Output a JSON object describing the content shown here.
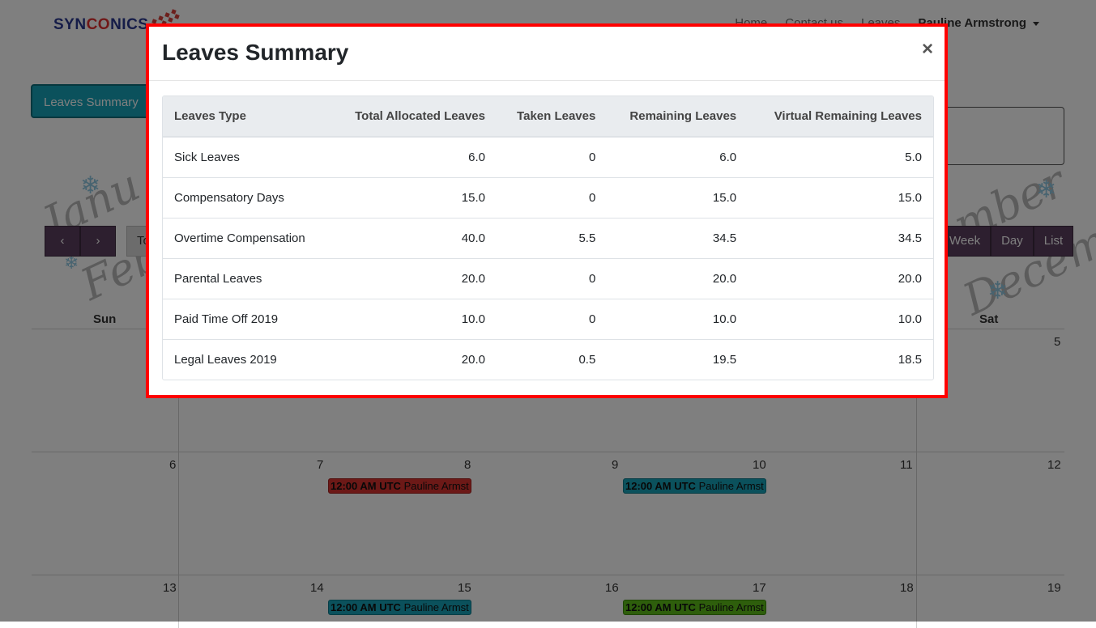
{
  "brand": {
    "logo_left": "SYN",
    "logo_mid": "CO",
    "logo_right": "NICS"
  },
  "nav": {
    "home": "Home",
    "contact": "Contact us",
    "leaves": "Leaves",
    "user": "Pauline Armstrong"
  },
  "toolbar": {
    "summary_label": "Leaves Summary"
  },
  "calendar": {
    "today_label": "Today",
    "views": [
      "Week",
      "Day",
      "List"
    ],
    "weekdays": {
      "sun": "Sun",
      "sat": "Sat"
    },
    "days_row1": {
      "sat": "5"
    },
    "days_row2": [
      "6",
      "7",
      "8",
      "9",
      "10",
      "11",
      "12"
    ],
    "days_row3": [
      "13",
      "14",
      "15",
      "16",
      "17",
      "18",
      "19"
    ],
    "events": [
      {
        "time": "12:00 AM UTC",
        "title": "Pauline Armst",
        "color": "#d9322e"
      },
      {
        "time": "12:00 AM UTC",
        "title": "Pauline Armst",
        "color": "#17a2b8"
      },
      {
        "time": "12:00 AM UTC",
        "title": "Pauline Armst",
        "color": "#17a2b8"
      },
      {
        "time": "12:00 AM UTC",
        "title": "Pauline Armst",
        "color": "#5cbd18"
      }
    ]
  },
  "modal": {
    "title": "Leaves Summary",
    "close": "×",
    "columns": [
      "Leaves Type",
      "Total Allocated Leaves",
      "Taken Leaves",
      "Remaining Leaves",
      "Virtual Remaining Leaves"
    ],
    "rows": [
      [
        "Sick Leaves",
        "6.0",
        "0",
        "6.0",
        "5.0"
      ],
      [
        "Compensatory Days",
        "15.0",
        "0",
        "15.0",
        "15.0"
      ],
      [
        "Overtime Compensation",
        "40.0",
        "5.5",
        "34.5",
        "34.5"
      ],
      [
        "Parental Leaves",
        "20.0",
        "0",
        "20.0",
        "20.0"
      ],
      [
        "Paid Time Off 2019",
        "10.0",
        "0",
        "10.0",
        "10.0"
      ],
      [
        "Legal Leaves 2019",
        "20.0",
        "0.5",
        "19.5",
        "18.5"
      ]
    ]
  },
  "colors": {
    "accent": "#17a2b8",
    "highlight_border": "#ff0000",
    "calendar_btn": "#5b3f5f"
  }
}
